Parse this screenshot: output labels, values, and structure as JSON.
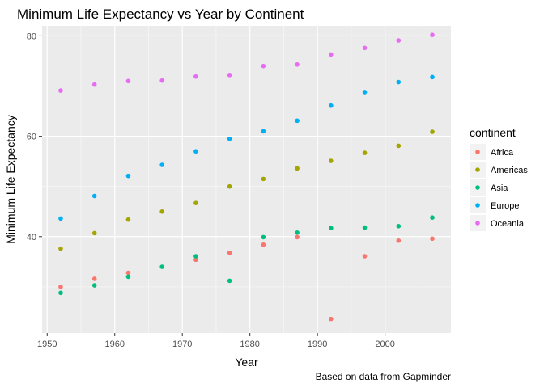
{
  "chart_data": {
    "type": "scatter",
    "title": "Minimum Life Expectancy vs Year by Continent",
    "xlabel": "Year",
    "ylabel": "Minimum Life Expectancy",
    "caption": "Based on data from Gapminder",
    "xlim": [
      1949.25,
      2009.75
    ],
    "ylim": [
      20.8,
      82.0
    ],
    "xticks": [
      1950,
      1960,
      1970,
      1980,
      1990,
      2000
    ],
    "yticks": [
      40,
      60,
      80
    ],
    "grid": true,
    "legend": {
      "title": "continent",
      "placement": "right"
    },
    "x": [
      1952,
      1957,
      1962,
      1967,
      1972,
      1977,
      1982,
      1987,
      1992,
      1997,
      2002,
      2007
    ],
    "series": [
      {
        "name": "Africa",
        "color": "#F8766D",
        "values": [
          [
            1952,
            30.0
          ],
          [
            1957,
            31.6
          ],
          [
            1962,
            32.8
          ],
          [
            1972,
            35.4
          ],
          [
            1977,
            36.8
          ],
          [
            1982,
            38.4
          ],
          [
            1987,
            39.9
          ],
          [
            1992,
            23.6
          ],
          [
            1997,
            36.1
          ],
          [
            2002,
            39.2
          ],
          [
            2007,
            39.6
          ]
        ]
      },
      {
        "name": "Americas",
        "color": "#A3A500",
        "values": [
          [
            1952,
            37.6
          ],
          [
            1957,
            40.7
          ],
          [
            1962,
            43.4
          ],
          [
            1967,
            45.0
          ],
          [
            1972,
            46.7
          ],
          [
            1977,
            50.0
          ],
          [
            1982,
            51.5
          ],
          [
            1987,
            53.6
          ],
          [
            1992,
            55.1
          ],
          [
            1997,
            56.7
          ],
          [
            2002,
            58.1
          ],
          [
            2007,
            60.9
          ]
        ]
      },
      {
        "name": "Asia",
        "color": "#00BF7D",
        "values": [
          [
            1952,
            28.8
          ],
          [
            1957,
            30.3
          ],
          [
            1962,
            32.0
          ],
          [
            1967,
            34.0
          ],
          [
            1972,
            36.1
          ],
          [
            1977,
            31.2
          ],
          [
            1982,
            39.9
          ],
          [
            1987,
            40.8
          ],
          [
            1992,
            41.7
          ],
          [
            1997,
            41.8
          ],
          [
            2002,
            42.1
          ],
          [
            2007,
            43.8
          ]
        ]
      },
      {
        "name": "Europe",
        "color": "#00B0F6",
        "values": [
          [
            1952,
            43.6
          ],
          [
            1957,
            48.1
          ],
          [
            1962,
            52.1
          ],
          [
            1967,
            54.3
          ],
          [
            1972,
            57.0
          ],
          [
            1977,
            59.5
          ],
          [
            1982,
            61.0
          ],
          [
            1987,
            63.1
          ],
          [
            1992,
            66.1
          ],
          [
            1997,
            68.8
          ],
          [
            2002,
            70.8
          ],
          [
            2007,
            71.8
          ]
        ]
      },
      {
        "name": "Oceania",
        "color": "#E76BF3",
        "values": [
          [
            1952,
            69.1
          ],
          [
            1957,
            70.3
          ],
          [
            1962,
            71.0
          ],
          [
            1967,
            71.1
          ],
          [
            1972,
            71.9
          ],
          [
            1977,
            72.2
          ],
          [
            1982,
            74.0
          ],
          [
            1987,
            74.3
          ],
          [
            1992,
            76.3
          ],
          [
            1997,
            77.6
          ],
          [
            2002,
            79.1
          ],
          [
            2007,
            80.2
          ]
        ]
      }
    ]
  }
}
